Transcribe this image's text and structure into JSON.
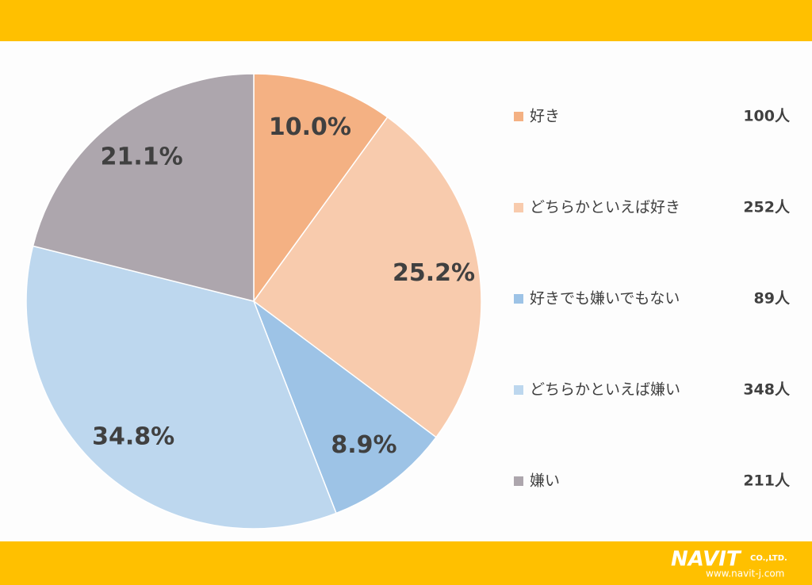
{
  "chart_data": {
    "type": "pie",
    "categories": [
      "好き",
      "どちらかといえば好き",
      "好きでも嫌いでもない",
      "どちらかといえば嫌い",
      "嫌い"
    ],
    "values": [
      10.0,
      25.2,
      8.9,
      34.8,
      21.1
    ],
    "value_labels": [
      "10.0%",
      "25.2%",
      "8.9%",
      "34.8%",
      "21.1%"
    ],
    "legend_counts": [
      "100人",
      "252人",
      "89人",
      "348人",
      "211人"
    ],
    "colors": [
      "#F4B183",
      "#F8CBAD",
      "#9DC3E6",
      "#BDD7EE",
      "#ADA6AD"
    ]
  },
  "logo": {
    "name": "NAVIT",
    "suffix": "CO.,LTD.",
    "url": "www.navit-j.com"
  }
}
